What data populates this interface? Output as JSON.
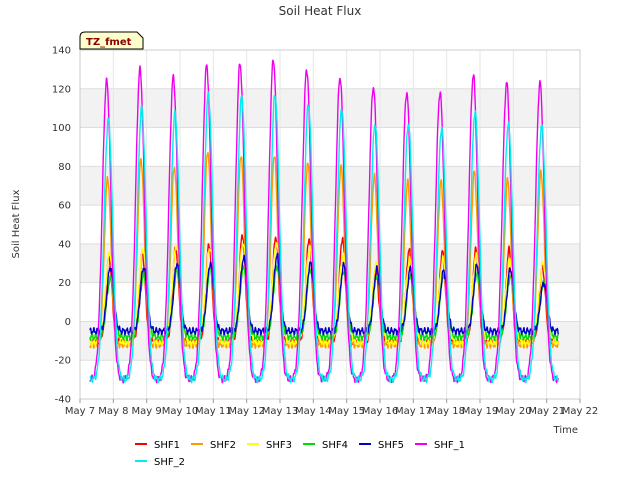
{
  "chart_data": {
    "type": "line",
    "title": "Soil Heat Flux",
    "xlabel": "Time",
    "ylabel": "Soil Heat Flux",
    "badge": "TZ_fmet",
    "xlim": [
      7,
      22
    ],
    "ylim": [
      -40,
      140
    ],
    "x_ticks": [
      7,
      8,
      9,
      10,
      11,
      12,
      13,
      14,
      15,
      16,
      17,
      18,
      19,
      20,
      21,
      22
    ],
    "x_tick_labels": [
      "May 7",
      "May 8",
      "May 9",
      "May 10",
      "May 11",
      "May 12",
      "May 13",
      "May 14",
      "May 15",
      "May 16",
      "May 17",
      "May 18",
      "May 19",
      "May 20",
      "May 21",
      "May 22"
    ],
    "y_ticks": [
      -40,
      -20,
      0,
      20,
      40,
      60,
      80,
      100,
      120,
      140
    ],
    "y_tick_labels": [
      "-40",
      "-20",
      "0",
      "20",
      "40",
      "60",
      "80",
      "100",
      "120",
      "140"
    ],
    "day_centers": [
      7.85,
      8.85,
      9.85,
      10.85,
      11.85,
      12.85,
      13.85,
      14.85,
      15.85,
      16.85,
      17.85,
      18.85,
      19.85,
      20.85
    ],
    "x_start": 7.3,
    "x_end": 21.35,
    "series": [
      {
        "name": "SHF1",
        "color": "#ff0000",
        "night": -10,
        "peak_offset": 0.02,
        "width": 0.09,
        "peaks": [
          33,
          35,
          38,
          40,
          45,
          44,
          43,
          43,
          28,
          37,
          36,
          37,
          37,
          28
        ]
      },
      {
        "name": "SHF2",
        "color": "#ff9900",
        "night": -12,
        "peak_offset": -0.02,
        "width": 0.1,
        "peaks": [
          74,
          84,
          80,
          88,
          86,
          86,
          82,
          80,
          75,
          72,
          72,
          77,
          73,
          77
        ]
      },
      {
        "name": "SHF3",
        "color": "#ffff00",
        "night": -11,
        "peak_offset": 0.04,
        "width": 0.12,
        "peaks": [
          35,
          37,
          39,
          38,
          40,
          40,
          38,
          34,
          30,
          32,
          32,
          34,
          32,
          30
        ]
      },
      {
        "name": "SHF4",
        "color": "#00dd00",
        "night": -8,
        "peak_offset": 0.06,
        "width": 0.11,
        "peaks": [
          22,
          24,
          26,
          27,
          28,
          28,
          27,
          26,
          24,
          24,
          24,
          25,
          23,
          20
        ]
      },
      {
        "name": "SHF5",
        "color": "#0000cc",
        "night": -5,
        "peak_offset": 0.06,
        "width": 0.1,
        "peaks": [
          28,
          28,
          30,
          30,
          33,
          34,
          30,
          29,
          27,
          27,
          26,
          29,
          27,
          20
        ]
      },
      {
        "name": "SHF_1",
        "color": "#ee00ee",
        "night": -30,
        "peak_offset": -0.05,
        "width": 0.13,
        "peaks": [
          124,
          130,
          126,
          132,
          133,
          135,
          130,
          126,
          121,
          118,
          118,
          127,
          123,
          123
        ]
      },
      {
        "name": "SHF_2",
        "color": "#00eeee",
        "night": -30,
        "peak_offset": 0.0,
        "width": 0.13,
        "peaks": [
          104,
          110,
          107,
          117,
          116,
          117,
          112,
          110,
          102,
          102,
          100,
          108,
          102,
          101
        ]
      }
    ]
  }
}
